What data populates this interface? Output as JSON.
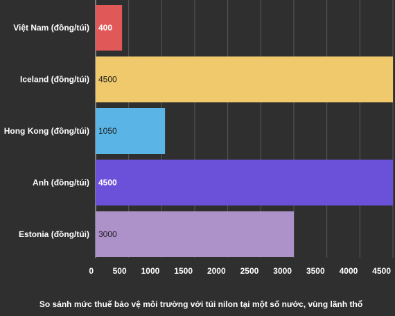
{
  "chart_data": {
    "type": "bar",
    "orientation": "horizontal",
    "categories": [
      "Việt Nam (đồng/túi)",
      "Iceland (đồng/túi)",
      "Hong Kong (đồng/túi)",
      "Anh (đồng/túi)",
      "Estonia (đồng/túi)"
    ],
    "values": [
      400,
      4500,
      1050,
      4500,
      3000
    ],
    "data_labels": [
      "400",
      "4500",
      "1050",
      "4500",
      "3000"
    ],
    "colors": [
      "#e05858",
      "#f0c96c",
      "#5ab5e6",
      "#6b51d9",
      "#ad92c9"
    ],
    "label_colors": [
      "#ffffff",
      "#1a1a1a",
      "#1a1a1a",
      "#ffffff",
      "#1a1a1a"
    ],
    "x_ticks": [
      "0",
      "500",
      "1000",
      "1500",
      "2000",
      "2500",
      "3000",
      "3500",
      "4000",
      "4500"
    ],
    "xlim": [
      0,
      4500
    ],
    "grid": true,
    "caption": "So sánh mức thuế bảo vệ môi trường với túi nilon tại một số nước, vùng lãnh thổ"
  }
}
